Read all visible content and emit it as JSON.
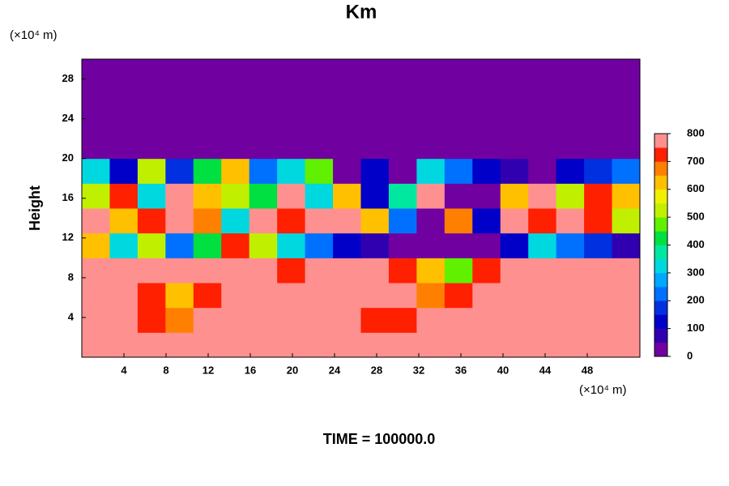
{
  "chart_data": {
    "type": "heatmap",
    "title": "Km",
    "y_unit_label": "(×10⁴ m)",
    "x_unit_label": "(×10⁴ m)",
    "y_label": "Height",
    "footer": "TIME = 100000.0",
    "xlim": [
      0,
      53
    ],
    "ylim": [
      0,
      30
    ],
    "xticks": [
      4,
      8,
      12,
      16,
      20,
      24,
      28,
      32,
      36,
      40,
      44,
      48
    ],
    "yticks": [
      4,
      8,
      12,
      16,
      20,
      24,
      28
    ],
    "colorbar_ticks": [
      0,
      100,
      200,
      300,
      400,
      500,
      600,
      700,
      800
    ],
    "colors": [
      "#7000a0",
      "#3000b0",
      "#0000c8",
      "#0030e0",
      "#0070ff",
      "#00a8ff",
      "#00d8e0",
      "#00e8a0",
      "#00e040",
      "#60f000",
      "#c0f000",
      "#f0f000",
      "#ffc000",
      "#ff8000",
      "#ff2000",
      "#ff9090"
    ],
    "z": [
      [
        800,
        800,
        800,
        800,
        800,
        800,
        800,
        800,
        800,
        800,
        800,
        800,
        800,
        800,
        800,
        800,
        800,
        800,
        800,
        800
      ],
      [
        800,
        780,
        700,
        650,
        780,
        800,
        800,
        800,
        800,
        760,
        700,
        720,
        800,
        800,
        780,
        800,
        800,
        800,
        800,
        800
      ],
      [
        800,
        750,
        700,
        600,
        720,
        800,
        800,
        780,
        800,
        800,
        800,
        750,
        650,
        700,
        800,
        760,
        800,
        800,
        800,
        800
      ],
      [
        800,
        800,
        760,
        800,
        800,
        800,
        780,
        700,
        800,
        800,
        800,
        700,
        600,
        450,
        700,
        800,
        800,
        800,
        800,
        800
      ],
      [
        600,
        300,
        500,
        200,
        400,
        700,
        500,
        300,
        200,
        100,
        50,
        0,
        0,
        0,
        0,
        100,
        300,
        200,
        150,
        50
      ],
      [
        750,
        600,
        700,
        800,
        650,
        300,
        800,
        700,
        800,
        750,
        600,
        200,
        0,
        650,
        100,
        800,
        700,
        800,
        700,
        500
      ],
      [
        500,
        700,
        300,
        800,
        600,
        500,
        400,
        750,
        300,
        600,
        100,
        350,
        800,
        0,
        0,
        600,
        800,
        500,
        700,
        600
      ],
      [
        300,
        100,
        500,
        150,
        400,
        600,
        200,
        300,
        450,
        0,
        100,
        0,
        300,
        200,
        100,
        50,
        0,
        100,
        150,
        200
      ],
      [
        0,
        0,
        0,
        0,
        0,
        0,
        0,
        0,
        0,
        0,
        0,
        0,
        0,
        0,
        0,
        0,
        0,
        0,
        0,
        0
      ],
      [
        0,
        0,
        0,
        0,
        0,
        0,
        0,
        0,
        0,
        0,
        0,
        0,
        0,
        0,
        0,
        0,
        0,
        0,
        0,
        0
      ],
      [
        0,
        0,
        0,
        0,
        0,
        0,
        0,
        0,
        0,
        0,
        0,
        0,
        0,
        0,
        0,
        0,
        0,
        0,
        0,
        0
      ],
      [
        0,
        0,
        0,
        0,
        0,
        0,
        0,
        0,
        0,
        0,
        0,
        0,
        0,
        0,
        0,
        0,
        0,
        0,
        0,
        0
      ]
    ]
  }
}
